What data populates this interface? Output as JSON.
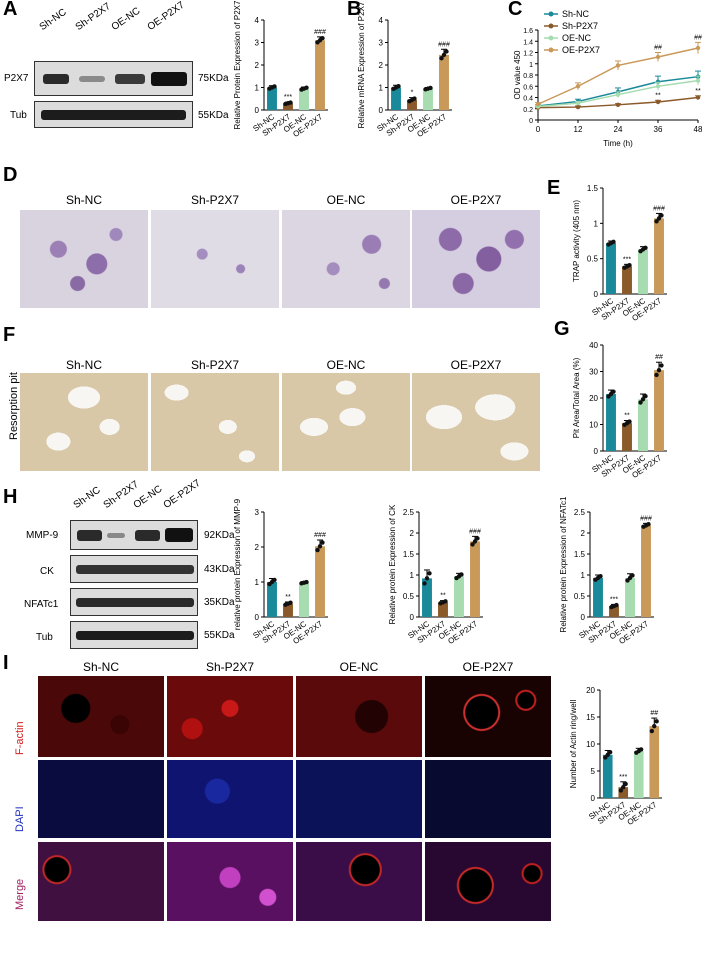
{
  "panels": {
    "A": "A",
    "B": "B",
    "C": "C",
    "D": "D",
    "E": "E",
    "F": "F",
    "G": "G",
    "H": "H",
    "I": "I"
  },
  "groups": [
    "Sh-NC",
    "Sh-P2X7",
    "OE-NC",
    "OE-P2X7"
  ],
  "colors": {
    "Sh-NC": "#1a8a9a",
    "Sh-P2X7": "#8b5a2b",
    "OE-NC": "#a6dcb0",
    "OE-P2X7": "#c9995a"
  },
  "blotA": {
    "rows": [
      {
        "label": "P2X7",
        "kda": "75KDa"
      },
      {
        "label": "Tub",
        "kda": "55KDa"
      }
    ]
  },
  "blotH": {
    "rows": [
      {
        "label": "MMP-9",
        "kda": "92KDa"
      },
      {
        "label": "CK",
        "kda": "43KDa"
      },
      {
        "label": "NFATc1",
        "kda": "35KDa"
      },
      {
        "label": "Tub",
        "kda": "55KDa"
      }
    ]
  },
  "imgD": {
    "titles": [
      "Sh-NC",
      "Sh-P2X7",
      "OE-NC",
      "OE-P2X7"
    ]
  },
  "imgF": {
    "titles": [
      "Sh-NC",
      "Sh-P2X7",
      "OE-NC",
      "OE-P2X7"
    ],
    "rowlabel": "Resorption pit"
  },
  "imgI": {
    "titles": [
      "Sh-NC",
      "Sh-P2X7",
      "OE-NC",
      "OE-P2X7"
    ],
    "rows": [
      "F-actin",
      "DAPI",
      "Merge"
    ]
  },
  "chart_data": [
    {
      "id": "A",
      "type": "bar",
      "categories": [
        "Sh-NC",
        "Sh-P2X7",
        "OE-NC",
        "OE-P2X7"
      ],
      "values": [
        1.0,
        0.3,
        0.95,
        3.1
      ],
      "errors": [
        0.08,
        0.05,
        0.07,
        0.15
      ],
      "sig": [
        "",
        "***",
        "",
        "###"
      ],
      "ylabel": "Relative Protein Expression of P2X7",
      "ylim": [
        0,
        4
      ],
      "yticks": [
        0,
        1,
        2,
        3,
        4
      ]
    },
    {
      "id": "B",
      "type": "bar",
      "categories": [
        "Sh-NC",
        "Sh-P2X7",
        "OE-NC",
        "OE-P2X7"
      ],
      "values": [
        1.0,
        0.45,
        0.95,
        2.45
      ],
      "errors": [
        0.1,
        0.1,
        0.05,
        0.25
      ],
      "sig": [
        "",
        "*",
        "",
        "###"
      ],
      "ylabel": "Relative mRNA Expression of P2X7",
      "ylim": [
        0,
        4
      ],
      "yticks": [
        0,
        1,
        2,
        3,
        4
      ]
    },
    {
      "id": "C",
      "type": "line",
      "x": [
        0,
        12,
        24,
        36,
        48
      ],
      "xlabel": "Time (h)",
      "ylabel": "OD value 450",
      "ylim": [
        0,
        1.6
      ],
      "yticks": [
        0,
        0.2,
        0.4,
        0.6,
        0.8,
        1.0,
        1.2,
        1.4,
        1.6
      ],
      "xticks": [
        0,
        12,
        24,
        36,
        48
      ],
      "series": [
        {
          "name": "Sh-NC",
          "values": [
            0.25,
            0.33,
            0.5,
            0.68,
            0.77
          ],
          "errors": [
            0.02,
            0.04,
            0.07,
            0.1,
            0.1
          ],
          "sig": [
            "",
            "",
            "",
            "",
            ""
          ]
        },
        {
          "name": "Sh-P2X7",
          "values": [
            0.22,
            0.23,
            0.27,
            0.32,
            0.4
          ],
          "errors": [
            0.01,
            0.02,
            0.02,
            0.03,
            0.03
          ],
          "sig": [
            "",
            "",
            "",
            "**",
            "**"
          ]
        },
        {
          "name": "OE-NC",
          "values": [
            0.24,
            0.3,
            0.45,
            0.6,
            0.7
          ],
          "errors": [
            0.02,
            0.03,
            0.05,
            0.07,
            0.08
          ],
          "sig": [
            "",
            "",
            "",
            "",
            ""
          ]
        },
        {
          "name": "OE-P2X7",
          "values": [
            0.28,
            0.6,
            0.97,
            1.12,
            1.28
          ],
          "errors": [
            0.03,
            0.06,
            0.08,
            0.08,
            0.1
          ],
          "sig": [
            "",
            "",
            "",
            "##",
            "##"
          ]
        }
      ]
    },
    {
      "id": "E",
      "type": "bar",
      "categories": [
        "Sh-NC",
        "Sh-P2X7",
        "OE-NC",
        "OE-P2X7"
      ],
      "values": [
        0.72,
        0.39,
        0.63,
        1.07
      ],
      "errors": [
        0.03,
        0.03,
        0.04,
        0.07
      ],
      "sig": [
        "",
        "***",
        "",
        "###"
      ],
      "ylabel": "TRAP activity (405 nm)",
      "ylim": [
        0,
        1.5
      ],
      "yticks": [
        0,
        0.5,
        1.0,
        1.5
      ]
    },
    {
      "id": "G",
      "type": "bar",
      "categories": [
        "Sh-NC",
        "Sh-P2X7",
        "OE-NC",
        "OE-P2X7"
      ],
      "values": [
        21.5,
        10.5,
        19.5,
        30.5
      ],
      "errors": [
        1.5,
        1.0,
        2.0,
        3.0
      ],
      "sig": [
        "",
        "**",
        "",
        "##"
      ],
      "ylabel": "Pit Area/Total Area (%)",
      "ylim": [
        0,
        40
      ],
      "yticks": [
        0,
        10,
        20,
        30,
        40
      ]
    },
    {
      "id": "H1",
      "type": "bar",
      "categories": [
        "Sh-NC",
        "Sh-P2X7",
        "OE-NC",
        "OE-P2X7"
      ],
      "values": [
        1.0,
        0.38,
        0.98,
        2.02
      ],
      "errors": [
        0.1,
        0.05,
        0.03,
        0.18
      ],
      "sig": [
        "",
        "**",
        "",
        "###"
      ],
      "ylabel": "relative protein Expression of MMP-9",
      "ylim": [
        0,
        3
      ],
      "yticks": [
        0,
        1,
        2,
        3
      ]
    },
    {
      "id": "H2",
      "type": "bar",
      "categories": [
        "Sh-NC",
        "Sh-P2X7",
        "OE-NC",
        "OE-P2X7"
      ],
      "values": [
        0.92,
        0.35,
        0.97,
        1.8
      ],
      "errors": [
        0.2,
        0.04,
        0.07,
        0.12
      ],
      "sig": [
        "",
        "**",
        "",
        "###"
      ],
      "ylabel": "Relative protein Expression of CK",
      "ylim": [
        0,
        2.5
      ],
      "yticks": [
        0,
        0.5,
        1.0,
        1.5,
        2.0,
        2.5
      ]
    },
    {
      "id": "H3",
      "type": "bar",
      "categories": [
        "Sh-NC",
        "Sh-P2X7",
        "OE-NC",
        "OE-P2X7"
      ],
      "values": [
        0.93,
        0.26,
        0.93,
        2.18
      ],
      "errors": [
        0.07,
        0.04,
        0.1,
        0.05
      ],
      "sig": [
        "",
        "***",
        "",
        "###"
      ],
      "ylabel": "Relative protein Expression of NFATc1",
      "ylim": [
        0,
        2.5
      ],
      "yticks": [
        0,
        0.5,
        1.0,
        1.5,
        2.0,
        2.5
      ]
    },
    {
      "id": "I",
      "type": "bar",
      "categories": [
        "Sh-NC",
        "Sh-P2X7",
        "OE-NC",
        "OE-P2X7"
      ],
      "values": [
        8.0,
        2.0,
        8.7,
        13.3
      ],
      "errors": [
        0.8,
        1.0,
        0.5,
        1.5
      ],
      "sig": [
        "",
        "***",
        "",
        "##"
      ],
      "ylabel": "Number of Actin ring/well",
      "ylim": [
        0,
        20
      ],
      "yticks": [
        0,
        5,
        10,
        15,
        20
      ]
    }
  ]
}
